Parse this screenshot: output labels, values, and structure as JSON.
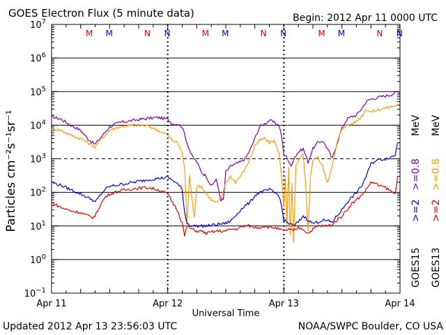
{
  "header": {
    "title": "GOES Electron Flux (5 minute data)",
    "begin": "Begin: 2012 Apr 11 0000 UTC"
  },
  "footer": {
    "updated": "Updated 2012 Apr 13 23:56:03 UTC",
    "credit": "NOAA/SWPC Boulder, CO USA"
  },
  "chart_data": {
    "type": "line",
    "title": "GOES Electron Flux (5 minute data)",
    "xlabel": "Universal Time",
    "ylabel": "Particles cm⁻²s⁻¹sr⁻¹",
    "yscale": "log",
    "ylim": [
      0.1,
      10000000
    ],
    "xlim": [
      0,
      72
    ],
    "x_unit": "hours since 2012 Apr 11 0000 UTC",
    "x_ticks": [
      {
        "x": 0,
        "label": "Apr 11"
      },
      {
        "x": 24,
        "label": "Apr 12"
      },
      {
        "x": 48,
        "label": "Apr 13"
      },
      {
        "x": 72,
        "label": "Apr 14"
      }
    ],
    "y_ticks": [
      {
        "value": 0.1,
        "base": "10",
        "exp": "−1"
      },
      {
        "value": 1,
        "base": "10",
        "exp": "0"
      },
      {
        "value": 10,
        "base": "10",
        "exp": "1"
      },
      {
        "value": 100,
        "base": "10",
        "exp": "2"
      },
      {
        "value": 1000,
        "base": "10",
        "exp": "3"
      },
      {
        "value": 10000,
        "base": "10",
        "exp": "4"
      },
      {
        "value": 100000,
        "base": "10",
        "exp": "5"
      },
      {
        "value": 1000000,
        "base": "10",
        "exp": "6"
      },
      {
        "value": 10000000,
        "base": "10",
        "exp": "7"
      }
    ],
    "dashed_level": 1000,
    "mn_markers": [
      {
        "x": 7.8,
        "label": "M",
        "color": "#dd0000"
      },
      {
        "x": 11.9,
        "label": "M",
        "color": "#0000cc"
      },
      {
        "x": 19.8,
        "label": "N",
        "color": "#dd0000"
      },
      {
        "x": 23.9,
        "label": "N",
        "color": "#0000cc"
      },
      {
        "x": 31.8,
        "label": "M",
        "color": "#dd0000"
      },
      {
        "x": 35.9,
        "label": "M",
        "color": "#0000cc"
      },
      {
        "x": 43.8,
        "label": "N",
        "color": "#dd0000"
      },
      {
        "x": 47.9,
        "label": "N",
        "color": "#0000cc"
      },
      {
        "x": 55.8,
        "label": "M",
        "color": "#dd0000"
      },
      {
        "x": 59.9,
        "label": "M",
        "color": "#0000cc"
      },
      {
        "x": 67.8,
        "label": "N",
        "color": "#dd0000"
      },
      {
        "x": 71.9,
        "label": "N",
        "color": "#0000cc"
      }
    ],
    "legend": {
      "position": "right",
      "satellites": [
        {
          "label": "GOES15",
          "color": "#000000"
        },
        {
          "label": "GOES13",
          "color": "#000000"
        }
      ],
      "entries": [
        {
          "label": ">=2",
          "color": "#0000dd"
        },
        {
          "label": ">=0.8",
          "color": "#7700aa"
        },
        {
          "label": ">=2",
          "color": "#dd0000"
        },
        {
          "label": ">=0.8",
          "color": "#ff9900"
        }
      ],
      "unit": "MeV"
    },
    "series": [
      {
        "name": "GOES15 >=0.8 MeV",
        "color": "#7700aa",
        "points": [
          [
            0,
            18000
          ],
          [
            2,
            15000
          ],
          [
            4,
            10000
          ],
          [
            6,
            7000
          ],
          [
            7.5,
            4000
          ],
          [
            8.5,
            3000
          ],
          [
            9,
            2700
          ],
          [
            10,
            4000
          ],
          [
            11,
            6000
          ],
          [
            12,
            9000
          ],
          [
            14,
            12000
          ],
          [
            17,
            14000
          ],
          [
            20,
            16000
          ],
          [
            22,
            17000
          ],
          [
            24,
            15000
          ],
          [
            25,
            11000
          ],
          [
            26,
            11000
          ],
          [
            27,
            9000
          ],
          [
            28,
            3000
          ],
          [
            29,
            1200
          ],
          [
            30,
            800
          ],
          [
            31,
            400
          ],
          [
            32,
            300
          ],
          [
            33,
            150
          ],
          [
            34,
            250
          ],
          [
            35,
            60
          ],
          [
            35.5,
            60
          ],
          [
            36,
            400
          ],
          [
            37,
            600
          ],
          [
            38,
            700
          ],
          [
            39,
            800
          ],
          [
            40,
            1000
          ],
          [
            41,
            1800
          ],
          [
            42,
            4000
          ],
          [
            43,
            9000
          ],
          [
            44,
            11000
          ],
          [
            45,
            14000
          ],
          [
            46,
            12000
          ],
          [
            47,
            10000
          ],
          [
            47.5,
            5000
          ],
          [
            48,
            1300
          ],
          [
            48.7,
            1100
          ],
          [
            49,
            800
          ],
          [
            49.5,
            600
          ],
          [
            50,
            1000
          ],
          [
            51,
            1600
          ],
          [
            52,
            2000
          ],
          [
            53,
            800
          ],
          [
            54,
            2000
          ],
          [
            55,
            3000
          ],
          [
            56,
            3500
          ],
          [
            57,
            2000
          ],
          [
            58,
            1000
          ],
          [
            59,
            3000
          ],
          [
            60,
            8000
          ],
          [
            61,
            15000
          ],
          [
            62,
            18000
          ],
          [
            63,
            20000
          ],
          [
            64,
            30000
          ],
          [
            65,
            50000
          ],
          [
            66,
            60000
          ],
          [
            68,
            70000
          ],
          [
            70,
            80000
          ],
          [
            71.5,
            100000
          ]
        ]
      },
      {
        "name": "GOES13 >=0.8 MeV",
        "color": "#ff9900",
        "points": [
          [
            0,
            8000
          ],
          [
            2,
            7000
          ],
          [
            4,
            5000
          ],
          [
            6,
            4000
          ],
          [
            7.5,
            3000
          ],
          [
            8.5,
            2500
          ],
          [
            9,
            2200
          ],
          [
            10,
            3500
          ],
          [
            11,
            5000
          ],
          [
            12,
            7000
          ],
          [
            14,
            9000
          ],
          [
            17,
            10000
          ],
          [
            20,
            9500
          ],
          [
            22,
            7000
          ],
          [
            24,
            5000
          ],
          [
            25,
            3500
          ],
          [
            26,
            3000
          ],
          [
            27,
            1500
          ],
          [
            27.5,
            500
          ],
          [
            28,
            12
          ],
          [
            28.5,
            300
          ],
          [
            29,
            70
          ],
          [
            29.5,
            20
          ],
          [
            30,
            150
          ],
          [
            31,
            150
          ],
          [
            32,
            90
          ],
          [
            33,
            60
          ],
          [
            34,
            50
          ],
          [
            35,
            60
          ],
          [
            36,
            200
          ],
          [
            37,
            300
          ],
          [
            38,
            200
          ],
          [
            39,
            300
          ],
          [
            40,
            500
          ],
          [
            41,
            1000
          ],
          [
            42,
            2500
          ],
          [
            43,
            3500
          ],
          [
            44,
            4000
          ],
          [
            45,
            3000
          ],
          [
            46,
            3500
          ],
          [
            47,
            1500
          ],
          [
            47.5,
            300
          ],
          [
            48,
            40
          ],
          [
            48.3,
            300
          ],
          [
            48.6,
            8
          ],
          [
            49,
            500
          ],
          [
            49.3,
            5
          ],
          [
            49.7,
            200
          ],
          [
            50,
            3
          ],
          [
            50.5,
            600
          ],
          [
            51,
            800
          ],
          [
            52,
            1400
          ],
          [
            52.5,
            200
          ],
          [
            53,
            7
          ],
          [
            53.5,
            300
          ],
          [
            54,
            900
          ],
          [
            55,
            1100
          ],
          [
            56,
            600
          ],
          [
            57,
            200
          ],
          [
            58,
            600
          ],
          [
            59,
            3000
          ],
          [
            60,
            8000
          ],
          [
            61,
            10000
          ],
          [
            62,
            11000
          ],
          [
            63,
            13000
          ],
          [
            64,
            18000
          ],
          [
            65,
            30000
          ],
          [
            66,
            25000
          ],
          [
            68,
            30000
          ],
          [
            70,
            35000
          ],
          [
            71.5,
            40000
          ]
        ]
      },
      {
        "name": "GOES15 >=2 MeV",
        "color": "#0000dd",
        "points": [
          [
            0,
            200
          ],
          [
            2,
            160
          ],
          [
            4,
            120
          ],
          [
            6,
            90
          ],
          [
            7.5,
            70
          ],
          [
            8.5,
            60
          ],
          [
            9,
            50
          ],
          [
            10,
            80
          ],
          [
            11,
            120
          ],
          [
            12,
            150
          ],
          [
            14,
            170
          ],
          [
            17,
            200
          ],
          [
            20,
            240
          ],
          [
            22,
            260
          ],
          [
            24,
            280
          ],
          [
            25,
            230
          ],
          [
            26,
            180
          ],
          [
            27,
            120
          ],
          [
            27.5,
            25
          ],
          [
            28,
            12
          ],
          [
            29,
            10
          ],
          [
            30,
            10
          ],
          [
            31,
            10
          ],
          [
            32,
            10
          ],
          [
            34,
            11
          ],
          [
            36,
            12
          ],
          [
            37,
            14
          ],
          [
            38,
            20
          ],
          [
            39,
            30
          ],
          [
            40,
            40
          ],
          [
            41,
            50
          ],
          [
            42,
            80
          ],
          [
            43,
            100
          ],
          [
            44,
            110
          ],
          [
            45,
            120
          ],
          [
            46,
            100
          ],
          [
            47,
            80
          ],
          [
            47.5,
            40
          ],
          [
            48,
            15
          ],
          [
            49,
            12
          ],
          [
            50,
            10
          ],
          [
            51,
            13
          ],
          [
            52,
            20
          ],
          [
            53,
            15
          ],
          [
            54,
            12
          ],
          [
            55,
            13
          ],
          [
            56,
            15
          ],
          [
            57,
            14
          ],
          [
            58,
            13
          ],
          [
            59,
            20
          ],
          [
            60,
            30
          ],
          [
            61,
            50
          ],
          [
            62,
            70
          ],
          [
            63,
            100
          ],
          [
            64,
            150
          ],
          [
            65,
            300
          ],
          [
            66,
            700
          ],
          [
            67,
            900
          ],
          [
            69,
            1000
          ],
          [
            70,
            1100
          ],
          [
            71,
            1300
          ],
          [
            71.5,
            3000
          ]
        ]
      },
      {
        "name": "GOES13 >=2 MeV",
        "color": "#dd0000",
        "points": [
          [
            0,
            50
          ],
          [
            2,
            35
          ],
          [
            4,
            28
          ],
          [
            6,
            25
          ],
          [
            7.5,
            20
          ],
          [
            8.5,
            18
          ],
          [
            9,
            20
          ],
          [
            10,
            40
          ],
          [
            11,
            70
          ],
          [
            12,
            90
          ],
          [
            14,
            110
          ],
          [
            17,
            130
          ],
          [
            20,
            140
          ],
          [
            22,
            120
          ],
          [
            24,
            90
          ],
          [
            25,
            50
          ],
          [
            26,
            30
          ],
          [
            27,
            12
          ],
          [
            27.5,
            5
          ],
          [
            28,
            10
          ],
          [
            29,
            8
          ],
          [
            30,
            7
          ],
          [
            31,
            7
          ],
          [
            32,
            6
          ],
          [
            34,
            7
          ],
          [
            36,
            7
          ],
          [
            37,
            8
          ],
          [
            38,
            8
          ],
          [
            39,
            9
          ],
          [
            40,
            10
          ],
          [
            41,
            10
          ],
          [
            42,
            9
          ],
          [
            43,
            9
          ],
          [
            44,
            10
          ],
          [
            45,
            9
          ],
          [
            46,
            9
          ],
          [
            47,
            8
          ],
          [
            48,
            7
          ],
          [
            49,
            8
          ],
          [
            50,
            7
          ],
          [
            51,
            9
          ],
          [
            52,
            8
          ],
          [
            53,
            6
          ],
          [
            54,
            8
          ],
          [
            55,
            10
          ],
          [
            56,
            10
          ],
          [
            57,
            10
          ],
          [
            58,
            11
          ],
          [
            59,
            15
          ],
          [
            60,
            20
          ],
          [
            61,
            30
          ],
          [
            62,
            45
          ],
          [
            63,
            60
          ],
          [
            64,
            80
          ],
          [
            65,
            120
          ],
          [
            66,
            200
          ],
          [
            67,
            180
          ],
          [
            68,
            150
          ],
          [
            69,
            140
          ],
          [
            70,
            110
          ],
          [
            71,
            90
          ],
          [
            71.5,
            300
          ]
        ]
      }
    ]
  }
}
